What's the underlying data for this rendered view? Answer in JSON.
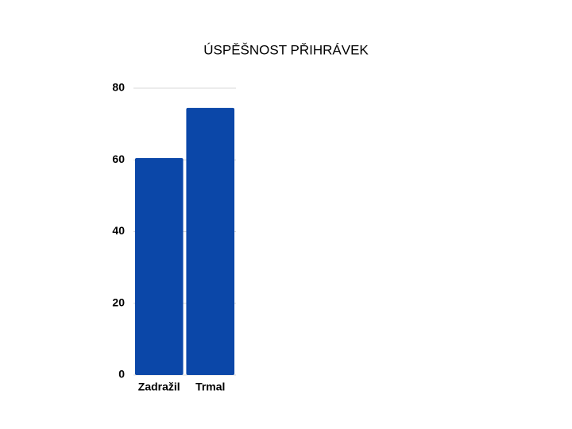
{
  "chart_data": {
    "type": "bar",
    "title": "ÚSPĚŠNOST PŘIHRÁVEK",
    "categories": [
      "Zadražil",
      "Trmal"
    ],
    "values": [
      60.5,
      74.5
    ],
    "color": "#0b47a8",
    "ylim": [
      0,
      80
    ],
    "yticks": [
      0,
      20,
      40,
      60,
      80
    ],
    "grid": true
  }
}
